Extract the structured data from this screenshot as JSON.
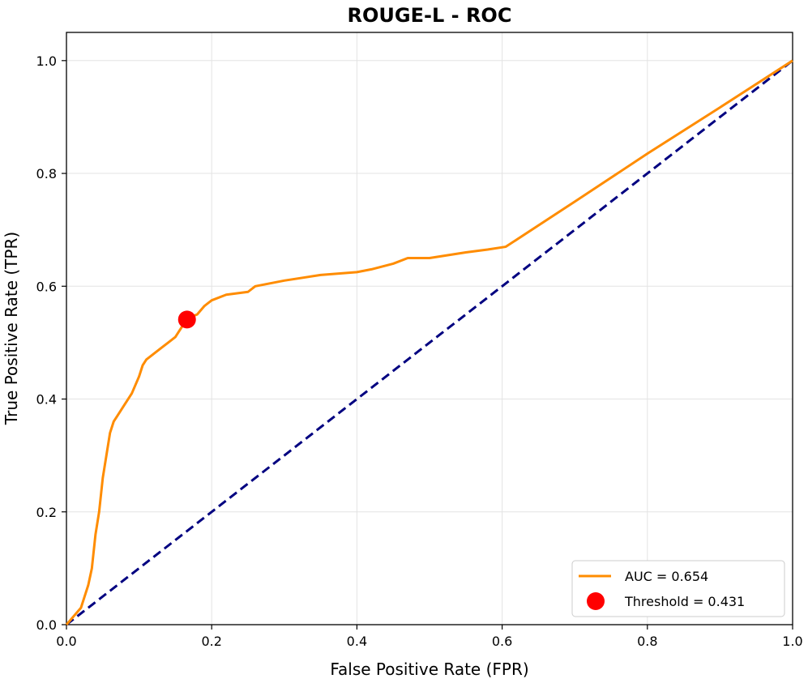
{
  "chart_data": {
    "type": "line",
    "title": "ROUGE-L - ROC",
    "xlabel": "False Positive Rate (FPR)",
    "ylabel": "True Positive Rate (TPR)",
    "xlim": [
      0.0,
      1.0
    ],
    "ylim": [
      0.0,
      1.05
    ],
    "xticks": [
      0.0,
      0.2,
      0.4,
      0.6,
      0.8,
      1.0
    ],
    "xtick_labels": [
      "0.0",
      "0.2",
      "0.4",
      "0.6",
      "0.8",
      "1.0"
    ],
    "yticks": [
      0.0,
      0.2,
      0.4,
      0.6,
      0.8,
      1.0
    ],
    "ytick_labels": [
      "0.0",
      "0.2",
      "0.4",
      "0.6",
      "0.8",
      "1.0"
    ],
    "grid": true,
    "legend_position": "lower-right",
    "colors": {
      "roc": "#ff8c00",
      "diagonal": "#000080",
      "threshold": "#ff0000"
    },
    "series": [
      {
        "name": "AUC = 0.654",
        "kind": "line",
        "x": [
          0.0,
          0.02,
          0.025,
          0.03,
          0.035,
          0.04,
          0.045,
          0.05,
          0.055,
          0.06,
          0.065,
          0.07,
          0.075,
          0.08,
          0.09,
          0.1,
          0.105,
          0.11,
          0.115,
          0.12,
          0.13,
          0.14,
          0.15,
          0.155,
          0.16,
          0.165,
          0.17,
          0.18,
          0.19,
          0.2,
          0.22,
          0.25,
          0.26,
          0.3,
          0.35,
          0.4,
          0.42,
          0.45,
          0.47,
          0.5,
          0.55,
          0.58,
          0.605,
          0.7,
          0.8,
          0.9,
          1.0
        ],
        "y": [
          0.0,
          0.03,
          0.05,
          0.07,
          0.1,
          0.16,
          0.2,
          0.26,
          0.3,
          0.34,
          0.36,
          0.37,
          0.38,
          0.39,
          0.41,
          0.44,
          0.46,
          0.47,
          0.475,
          0.48,
          0.49,
          0.5,
          0.51,
          0.52,
          0.53,
          0.54,
          0.545,
          0.55,
          0.565,
          0.575,
          0.585,
          0.59,
          0.6,
          0.61,
          0.62,
          0.625,
          0.63,
          0.64,
          0.65,
          0.65,
          0.66,
          0.665,
          0.67,
          0.75,
          0.835,
          0.917,
          1.0
        ]
      },
      {
        "name": "",
        "kind": "diagonal",
        "x": [
          0.0,
          1.0
        ],
        "y": [
          0.0,
          1.0
        ]
      },
      {
        "name": "Threshold = 0.431",
        "kind": "point",
        "x": [
          0.166
        ],
        "y": [
          0.541
        ]
      }
    ]
  }
}
